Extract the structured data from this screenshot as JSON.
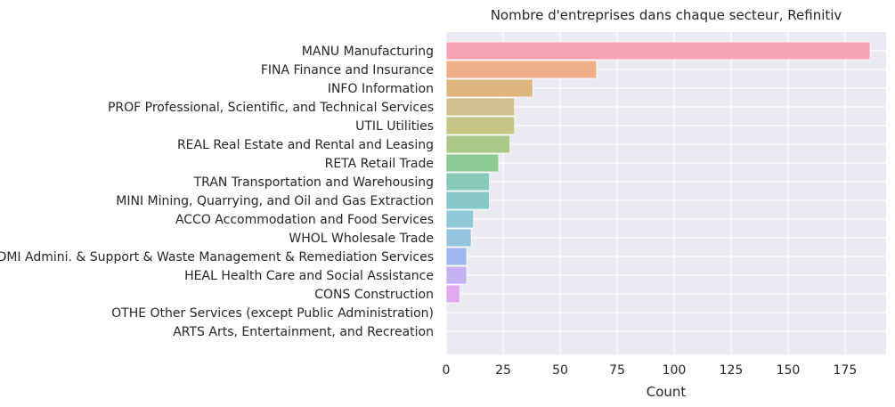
{
  "chart_data": {
    "type": "bar",
    "orientation": "horizontal",
    "title": "Nombre d'entreprises dans chaque secteur, Refinitiv",
    "xlabel": "Count",
    "ylabel": "",
    "xlim": [
      0,
      193
    ],
    "xticks": [
      0,
      25,
      50,
      75,
      100,
      125,
      150,
      175
    ],
    "grid": true,
    "categories": [
      "MANU Manufacturing",
      "FINA Finance and Insurance",
      "INFO Information",
      "PROF Professional, Scientific, and Technical Services",
      "UTIL Utilities",
      "REAL Real Estate and Rental and Leasing",
      "RETA Retail Trade",
      "TRAN Transportation and Warehousing",
      "MINI Mining, Quarrying, and Oil and Gas Extraction",
      "ACCO Accommodation and Food Services",
      "WHOL Wholesale Trade",
      "ADMI Admini. & Support & Waste Management & Remediation Services",
      "HEAL Health Care and Social Assistance",
      "CONS Construction",
      "OTHE Other Services (except Public Administration)",
      "ARTS Arts, Entertainment, and Recreation"
    ],
    "values": [
      186,
      66,
      38,
      30,
      30,
      28,
      23,
      19,
      19,
      12,
      11,
      9,
      9,
      6,
      0,
      0
    ],
    "colors": [
      "#f5a3b5",
      "#f0ad8a",
      "#ddb57f",
      "#d1c08d",
      "#c7c585",
      "#aac988",
      "#8ccb92",
      "#86cbb8",
      "#86c9c8",
      "#8fc8d6",
      "#95c5de",
      "#9fb8ef",
      "#c2b2f2",
      "#e3a9f0",
      "#eea8d0",
      "#f4a6bd"
    ],
    "background": "#eaeaf2"
  }
}
